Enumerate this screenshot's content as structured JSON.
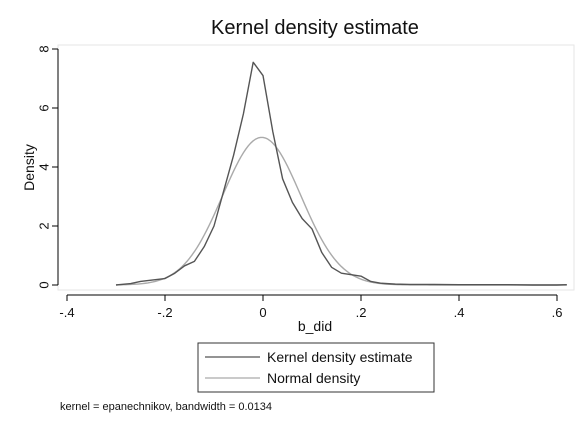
{
  "chart_data": {
    "type": "line",
    "title": "Kernel density estimate",
    "xlabel": "b_did",
    "ylabel": "Density",
    "xlim": [
      -0.41,
      0.63
    ],
    "ylim": [
      -0.3,
      8.3
    ],
    "xticks": [
      -0.4,
      -0.2,
      0,
      0.2,
      0.4,
      0.6
    ],
    "xtick_labels": [
      "-.4",
      "-.2",
      "0",
      ".2",
      ".4",
      ".6"
    ],
    "yticks": [
      0,
      2,
      4,
      6,
      8
    ],
    "ytick_labels": [
      "0",
      "2",
      "4",
      "6",
      "8"
    ],
    "grid": false,
    "legend_position": "bottom",
    "note": "kernel = epanechnikov, bandwidth = 0.0134",
    "series": [
      {
        "name": "Kernel density estimate",
        "color": "#555555",
        "x": [
          -0.3,
          -0.27,
          -0.25,
          -0.22,
          -0.2,
          -0.18,
          -0.16,
          -0.14,
          -0.12,
          -0.1,
          -0.08,
          -0.06,
          -0.04,
          -0.02,
          0.0,
          0.02,
          0.04,
          0.06,
          0.08,
          0.1,
          0.12,
          0.14,
          0.16,
          0.18,
          0.2,
          0.22,
          0.24,
          0.27,
          0.3,
          0.35,
          0.4,
          0.45,
          0.5,
          0.55,
          0.6,
          0.62
        ],
        "y": [
          0.0,
          0.05,
          0.12,
          0.18,
          0.22,
          0.4,
          0.65,
          0.8,
          1.3,
          2.0,
          3.2,
          4.4,
          5.8,
          7.55,
          7.1,
          5.2,
          3.6,
          2.8,
          2.25,
          1.9,
          1.1,
          0.6,
          0.4,
          0.35,
          0.3,
          0.12,
          0.06,
          0.03,
          0.02,
          0.02,
          0.01,
          0.01,
          0.01,
          0.0,
          0.0,
          0.01
        ]
      },
      {
        "name": "Normal density",
        "color": "#aaaaaa",
        "mean": -0.0026,
        "sd": 0.0797
      }
    ]
  }
}
